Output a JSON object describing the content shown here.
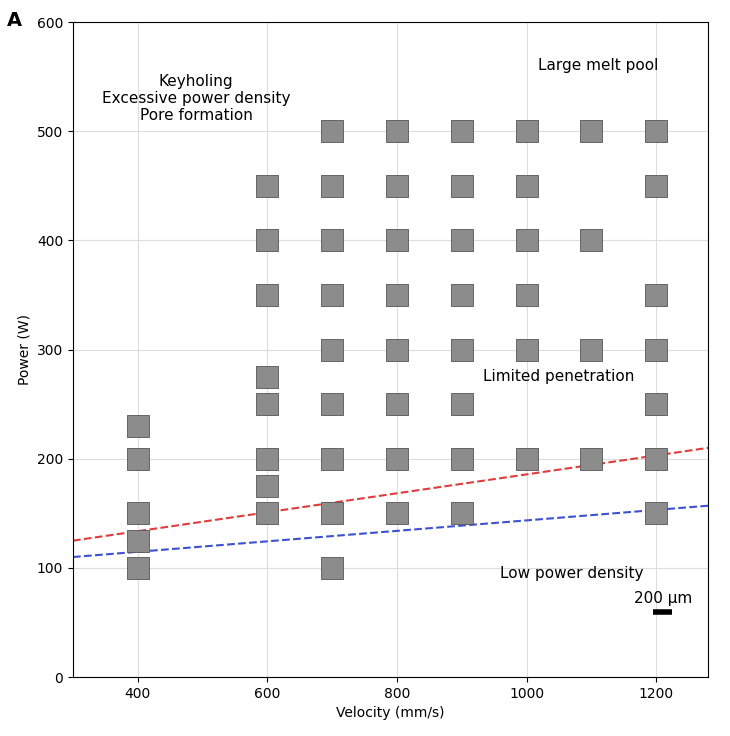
{
  "chart_data": {
    "type": "scatter",
    "panel_label": "A",
    "x_label": "Velocity (mm/s)",
    "y_label": "Power (W)",
    "xlim": [
      300,
      1280
    ],
    "ylim": [
      0,
      600
    ],
    "xticks": [
      400,
      600,
      800,
      1000,
      1200
    ],
    "yticks": [
      0,
      100,
      200,
      300,
      400,
      500,
      600
    ],
    "grid": true,
    "series": [
      {
        "type": "scatter",
        "color": "#8c8c8c",
        "marker": "square",
        "x": [
          400,
          400,
          400,
          400,
          400,
          600,
          600,
          600,
          600,
          600,
          600,
          600,
          600,
          700,
          700,
          700,
          700,
          700,
          700,
          700,
          700,
          700,
          800,
          800,
          800,
          800,
          800,
          800,
          800,
          800,
          900,
          900,
          900,
          900,
          900,
          900,
          900,
          900,
          1000,
          1000,
          1000,
          1000,
          1000,
          1000,
          1100,
          1100,
          1100,
          1100,
          1200,
          1200,
          1200,
          1200,
          1200,
          1200,
          1200
        ],
        "y": [
          100,
          125,
          150,
          200,
          230,
          150,
          175,
          200,
          250,
          275,
          350,
          400,
          450,
          100,
          150,
          200,
          250,
          300,
          350,
          400,
          450,
          500,
          150,
          200,
          250,
          300,
          350,
          400,
          450,
          500,
          150,
          200,
          250,
          300,
          350,
          400,
          450,
          500,
          200,
          300,
          350,
          400,
          450,
          500,
          200,
          300,
          400,
          500,
          150,
          200,
          250,
          300,
          350,
          450,
          500
        ]
      },
      {
        "type": "line",
        "color": "#e03c3c",
        "line_style": "dashed",
        "x": [
          300,
          1280
        ],
        "y": [
          125,
          210
        ]
      },
      {
        "type": "line",
        "color": "#3c50d2",
        "line_style": "dashed",
        "x": [
          300,
          1280
        ],
        "y": [
          110,
          157
        ]
      }
    ],
    "annotations": [
      {
        "text": "Keyholing\nExcessive power density\nPore formation",
        "x": 490,
        "y": 530
      },
      {
        "text": "Large melt pool",
        "x": 1110,
        "y": 560
      },
      {
        "text": "Limited penetration",
        "x": 1050,
        "y": 275
      },
      {
        "text": "Low power density",
        "x": 1070,
        "y": 95
      },
      {
        "text": "200 µm",
        "x": 1210,
        "y": 72
      }
    ]
  }
}
